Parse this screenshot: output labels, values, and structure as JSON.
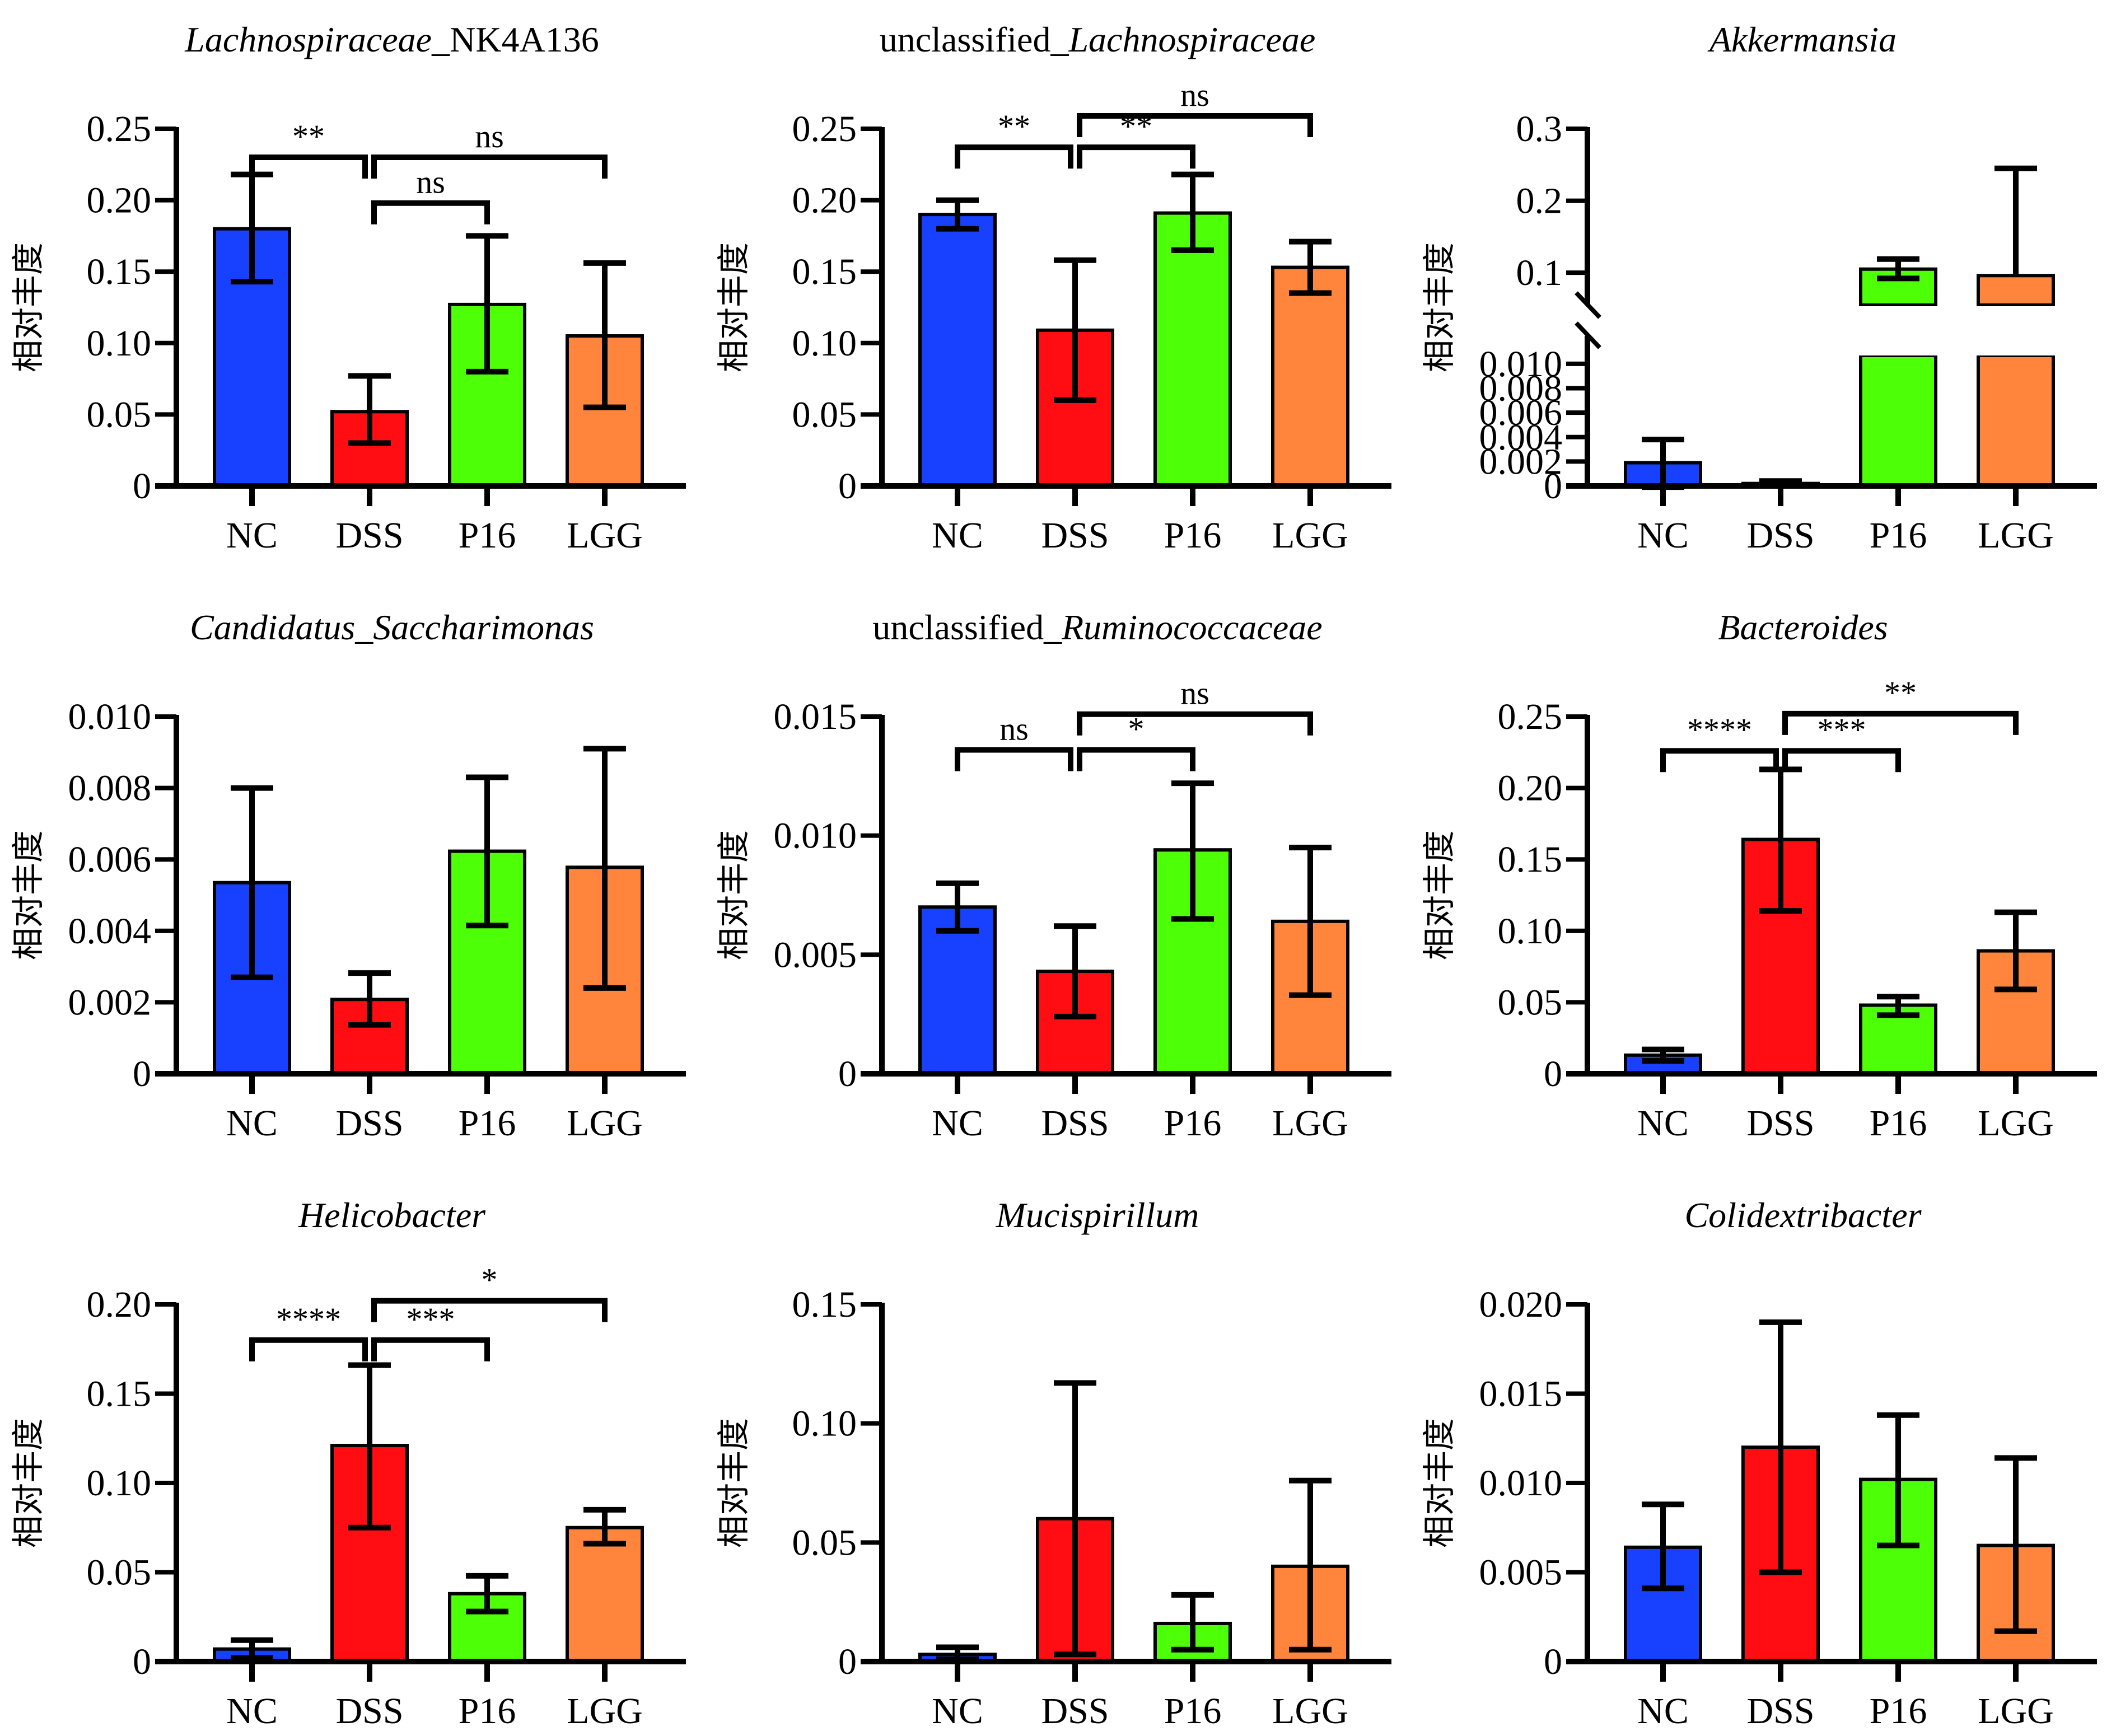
{
  "figure": {
    "ylabel": "相对丰度",
    "categories": [
      "NC",
      "DSS",
      "P16",
      "LGG"
    ],
    "colors": {
      "NC": "#1741FF",
      "DSS": "#FF0D12",
      "P16": "#4DFF07",
      "LGG": "#FF843C"
    }
  },
  "chart_data": [
    {
      "type": "bar",
      "title": [
        {
          "text": "Lachnospiraceae",
          "italic": true
        },
        {
          "text": "_NK4A136",
          "italic": false
        }
      ],
      "xlabel": "",
      "ylabel": "相对丰度",
      "categories": [
        "NC",
        "DSS",
        "P16",
        "LGG"
      ],
      "values": [
        0.18,
        0.052,
        0.127,
        0.105
      ],
      "err_low": [
        0.143,
        0.03,
        0.08,
        0.055
      ],
      "err_high": [
        0.218,
        0.077,
        0.175,
        0.156
      ],
      "ylim": [
        0,
        0.25
      ],
      "yticks": [
        0,
        0.05,
        0.1,
        0.15,
        0.2,
        0.25
      ],
      "ytick_labels": [
        "0",
        "0.05",
        "0.10",
        "0.15",
        "0.20",
        "0.25"
      ],
      "significance": [
        {
          "from": "NC",
          "to": "DSS",
          "label": "**",
          "level": 0.23
        },
        {
          "from": "DSS",
          "to": "P16",
          "label": "ns",
          "level": 0.198
        },
        {
          "from": "DSS",
          "to": "LGG",
          "label": "ns",
          "level": 0.23
        }
      ]
    },
    {
      "type": "bar",
      "title": [
        {
          "text": "unclassified_",
          "italic": false
        },
        {
          "text": "Lachnospiraceae",
          "italic": true
        }
      ],
      "xlabel": "",
      "ylabel": "相对丰度",
      "categories": [
        "NC",
        "DSS",
        "P16",
        "LGG"
      ],
      "values": [
        0.19,
        0.109,
        0.191,
        0.153
      ],
      "err_low": [
        0.18,
        0.06,
        0.165,
        0.135
      ],
      "err_high": [
        0.2,
        0.158,
        0.218,
        0.171
      ],
      "ylim": [
        0,
        0.25
      ],
      "yticks": [
        0,
        0.05,
        0.1,
        0.15,
        0.2,
        0.25
      ],
      "ytick_labels": [
        "0",
        "0.05",
        "0.10",
        "0.15",
        "0.20",
        "0.25"
      ],
      "significance": [
        {
          "from": "NC",
          "to": "DSS",
          "label": "**",
          "level": 0.237
        },
        {
          "from": "DSS",
          "to": "P16",
          "label": "**",
          "level": 0.237
        },
        {
          "from": "DSS",
          "to": "LGG",
          "label": "ns",
          "level": 0.259
        }
      ]
    },
    {
      "type": "bar",
      "title": [
        {
          "text": "Akkermansia",
          "italic": true
        }
      ],
      "xlabel": "",
      "ylabel": "相对丰度",
      "categories": [
        "NC",
        "DSS",
        "P16",
        "LGG"
      ],
      "values": [
        0.0019,
        0.0002,
        0.105,
        0.096
      ],
      "err_low": [
        -0.0001,
        0.0001,
        0.092,
        0.096
      ],
      "err_high": [
        0.0038,
        0.0004,
        0.119,
        0.245
      ],
      "broken_axis": true,
      "lower_segment": {
        "ylim": [
          0,
          0.0116
        ],
        "yticks": [
          0,
          0.002,
          0.004,
          0.006,
          0.008,
          0.01
        ],
        "ytick_labels": [
          "0",
          "0.002",
          "0.004",
          "0.006",
          "0.008",
          "0.010"
        ]
      },
      "upper_segment": {
        "ylim": [
          0.055,
          0.3
        ],
        "yticks": [
          0.1,
          0.2,
          0.3
        ],
        "ytick_labels": [
          "0.1",
          "0.2",
          "0.3"
        ]
      },
      "significance": []
    },
    {
      "type": "bar",
      "title": [
        {
          "text": "Candidatus_Saccharimonas",
          "italic": true
        }
      ],
      "xlabel": "",
      "ylabel": "相对丰度",
      "categories": [
        "NC",
        "DSS",
        "P16",
        "LGG"
      ],
      "values": [
        0.00535,
        0.00208,
        0.00623,
        0.00578
      ],
      "err_low": [
        0.0027,
        0.00137,
        0.00415,
        0.0024
      ],
      "err_high": [
        0.008,
        0.00282,
        0.0083,
        0.0091
      ],
      "ylim": [
        0,
        0.01
      ],
      "yticks": [
        0,
        0.002,
        0.004,
        0.006,
        0.008,
        0.01
      ],
      "ytick_labels": [
        "0",
        "0.002",
        "0.004",
        "0.006",
        "0.008",
        "0.010"
      ],
      "significance": []
    },
    {
      "type": "bar",
      "title": [
        {
          "text": "unclassified_",
          "italic": false
        },
        {
          "text": "Ruminococcaceae",
          "italic": true
        }
      ],
      "xlabel": "",
      "ylabel": "相对丰度",
      "categories": [
        "NC",
        "DSS",
        "P16",
        "LGG"
      ],
      "values": [
        0.007,
        0.0043,
        0.0094,
        0.0064
      ],
      "err_low": [
        0.006,
        0.0024,
        0.0065,
        0.0033
      ],
      "err_high": [
        0.008,
        0.0062,
        0.0122,
        0.0095
      ],
      "ylim": [
        0,
        0.015
      ],
      "yticks": [
        0,
        0.005,
        0.01,
        0.015
      ],
      "ytick_labels": [
        "0",
        "0.005",
        "0.010",
        "0.015"
      ],
      "significance": [
        {
          "from": "NC",
          "to": "DSS",
          "label": "ns",
          "level": 0.0136
        },
        {
          "from": "DSS",
          "to": "P16",
          "label": "*",
          "level": 0.0136
        },
        {
          "from": "DSS",
          "to": "LGG",
          "label": "ns",
          "level": 0.0151
        }
      ]
    },
    {
      "type": "bar",
      "title": [
        {
          "text": "Bacteroides",
          "italic": true
        }
      ],
      "xlabel": "",
      "ylabel": "相对丰度",
      "categories": [
        "NC",
        "DSS",
        "P16",
        "LGG"
      ],
      "values": [
        0.013,
        0.164,
        0.048,
        0.086
      ],
      "err_low": [
        0.009,
        0.114,
        0.041,
        0.059
      ],
      "err_high": [
        0.017,
        0.213,
        0.054,
        0.113
      ],
      "ylim": [
        0,
        0.25
      ],
      "yticks": [
        0,
        0.05,
        0.1,
        0.15,
        0.2,
        0.25
      ],
      "ytick_labels": [
        "0",
        "0.05",
        "0.10",
        "0.15",
        "0.20",
        "0.25"
      ],
      "significance": [
        {
          "from": "NC",
          "to": "DSS",
          "label": "****",
          "level": 0.226
        },
        {
          "from": "DSS",
          "to": "P16",
          "label": "***",
          "level": 0.226
        },
        {
          "from": "DSS",
          "to": "LGG",
          "label": "**",
          "level": 0.252
        }
      ]
    },
    {
      "type": "bar",
      "title": [
        {
          "text": "Helicobacter",
          "italic": true
        }
      ],
      "xlabel": "",
      "ylabel": "相对丰度",
      "categories": [
        "NC",
        "DSS",
        "P16",
        "LGG"
      ],
      "values": [
        0.007,
        0.121,
        0.038,
        0.075
      ],
      "err_low": [
        0.002,
        0.075,
        0.028,
        0.066
      ],
      "err_high": [
        0.012,
        0.166,
        0.048,
        0.085
      ],
      "ylim": [
        0,
        0.2
      ],
      "yticks": [
        0,
        0.05,
        0.1,
        0.15,
        0.2
      ],
      "ytick_labels": [
        "0",
        "0.05",
        "0.10",
        "0.15",
        "0.20"
      ],
      "significance": [
        {
          "from": "NC",
          "to": "DSS",
          "label": "****",
          "level": 0.18
        },
        {
          "from": "DSS",
          "to": "P16",
          "label": "***",
          "level": 0.18
        },
        {
          "from": "DSS",
          "to": "LGG",
          "label": "*",
          "level": 0.202
        }
      ]
    },
    {
      "type": "bar",
      "title": [
        {
          "text": "Mucispirillum",
          "italic": true
        }
      ],
      "xlabel": "",
      "ylabel": "相对丰度",
      "categories": [
        "NC",
        "DSS",
        "P16",
        "LGG"
      ],
      "values": [
        0.003,
        0.06,
        0.016,
        0.04
      ],
      "err_low": [
        0.001,
        0.003,
        0.005,
        0.005
      ],
      "err_high": [
        0.006,
        0.117,
        0.028,
        0.076
      ],
      "ylim": [
        0,
        0.15
      ],
      "yticks": [
        0,
        0.05,
        0.1,
        0.15
      ],
      "ytick_labels": [
        "0",
        "0.05",
        "0.10",
        "0.15"
      ],
      "significance": []
    },
    {
      "type": "bar",
      "title": [
        {
          "text": "Colidextribacter",
          "italic": true
        }
      ],
      "xlabel": "",
      "ylabel": "相对丰度",
      "categories": [
        "NC",
        "DSS",
        "P16",
        "LGG"
      ],
      "values": [
        0.0064,
        0.012,
        0.0102,
        0.0065
      ],
      "err_low": [
        0.0041,
        0.005,
        0.0065,
        0.0017
      ],
      "err_high": [
        0.0088,
        0.019,
        0.0138,
        0.0114
      ],
      "ylim": [
        0,
        0.02
      ],
      "yticks": [
        0,
        0.005,
        0.01,
        0.015,
        0.02
      ],
      "ytick_labels": [
        "0",
        "0.005",
        "0.010",
        "0.015",
        "0.020"
      ],
      "significance": []
    }
  ]
}
